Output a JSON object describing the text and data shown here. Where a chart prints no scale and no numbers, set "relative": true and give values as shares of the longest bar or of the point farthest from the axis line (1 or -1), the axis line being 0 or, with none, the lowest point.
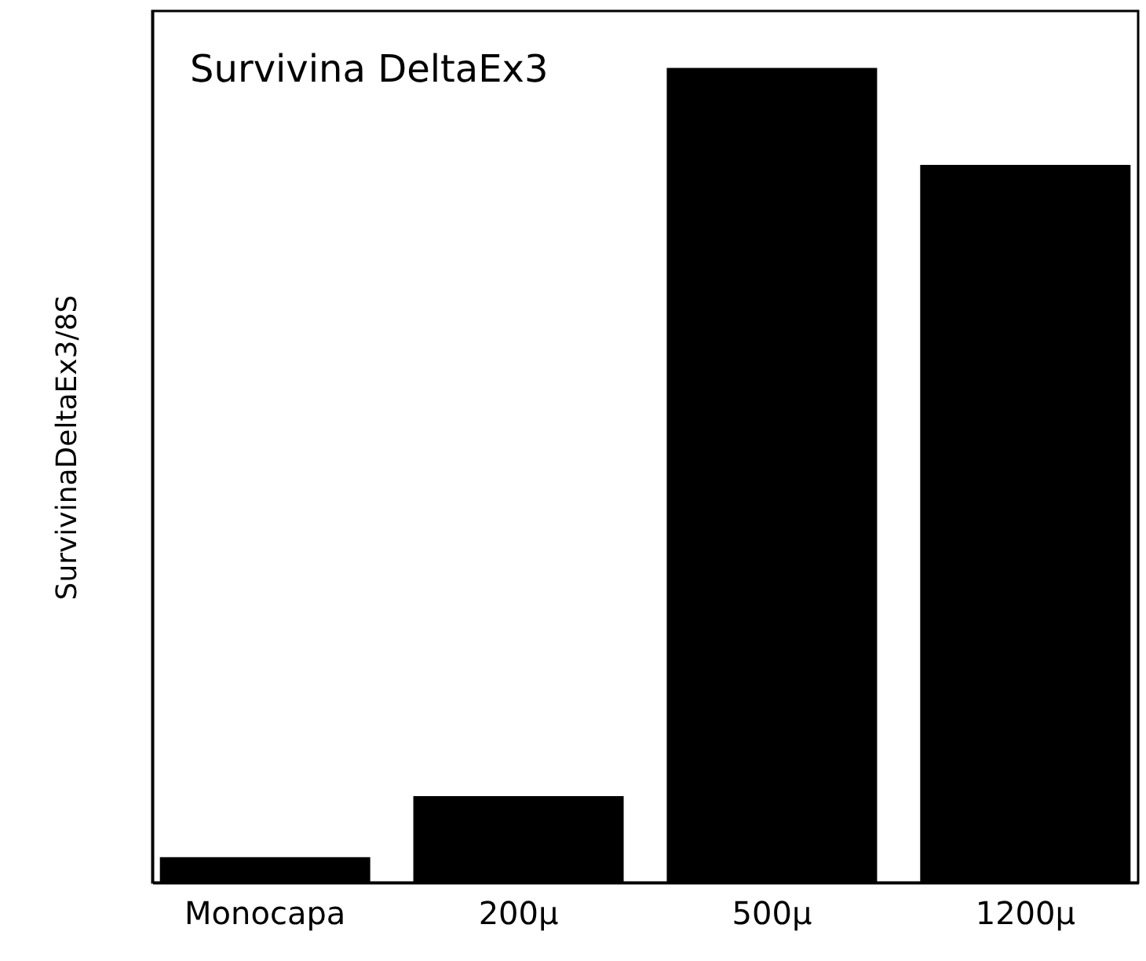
{
  "chart_data": {
    "type": "bar",
    "title": "Survivina DeltaEx3",
    "ylabel": "SurvivinaDeltaEx3/8S",
    "categories": [
      "Monocapa",
      "200µ",
      "500µ",
      "1200µ"
    ],
    "values": [
      0.031,
      0.106,
      1,
      0.881
    ],
    "color": "#000000",
    "relative": true
  }
}
